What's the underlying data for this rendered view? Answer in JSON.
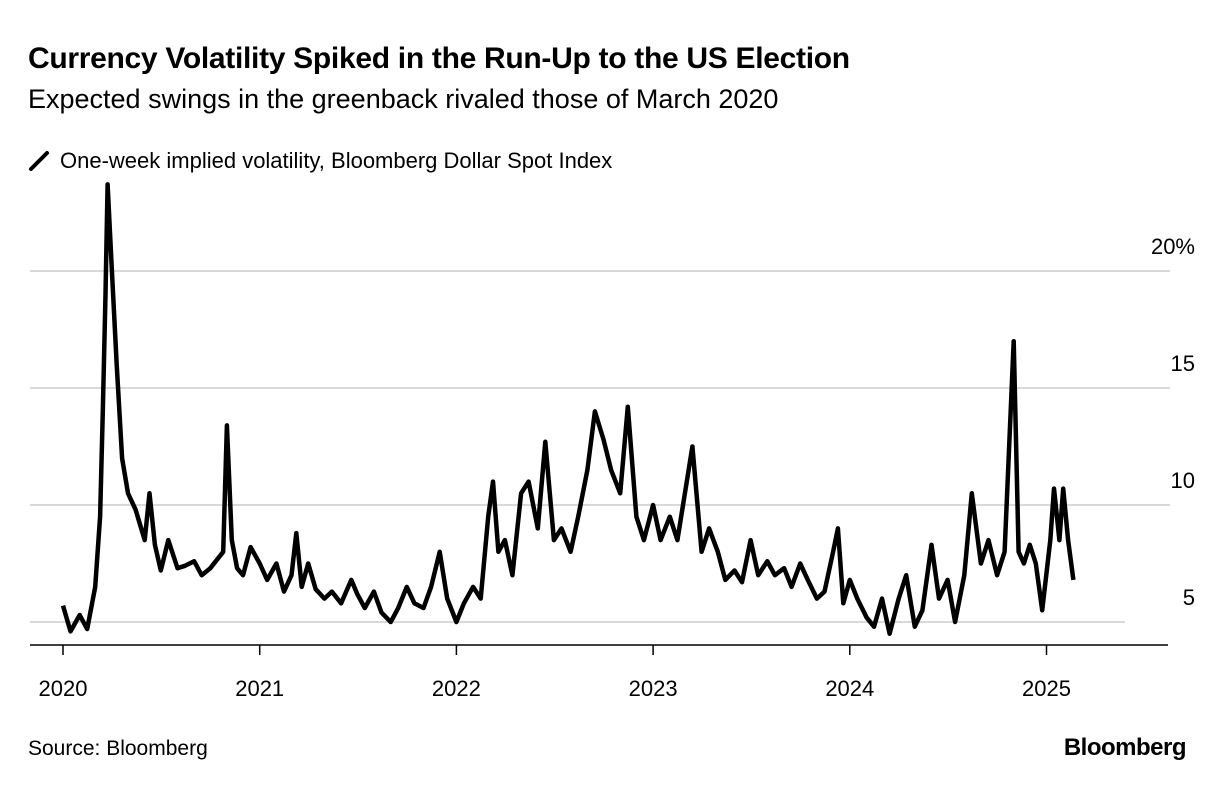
{
  "title": "Currency Volatility Spiked in the Run-Up to the US Election",
  "subtitle": "Expected swings in the greenback rivaled those of March 2020",
  "legend": {
    "label": "One-week implied volatility, Bloomberg Dollar Spot Index",
    "icon": "slash-line-icon",
    "color": "#000000"
  },
  "source": "Source: Bloomberg",
  "logo": "Bloomberg",
  "chart_data": {
    "type": "line",
    "title": "Currency Volatility Spiked in the Run-Up to the US Election",
    "subtitle": "Expected swings in the greenback rivaled those of March 2020",
    "ylim": [
      4.1,
      24
    ],
    "y_ticks": [
      5,
      10,
      15,
      20
    ],
    "y_tick_labels": [
      "5",
      "10",
      "15",
      "20%"
    ],
    "y_axis_position": "right",
    "x_ticks": [
      "2020-01-01",
      "2021-01-01",
      "2022-01-01",
      "2023-01-01",
      "2024-01-01",
      "2025-01-01"
    ],
    "x_tick_labels": [
      "2020",
      "2021",
      "2022",
      "2023",
      "2024",
      "2025"
    ],
    "grid": true,
    "series": [
      {
        "name": "One-week implied volatility, Bloomberg Dollar Spot Index",
        "color": "#000000",
        "x": [
          "2020-01-01",
          "2020-01-15",
          "2020-02-01",
          "2020-02-15",
          "2020-03-01",
          "2020-03-10",
          "2020-03-15",
          "2020-03-20",
          "2020-03-24",
          "2020-04-01",
          "2020-04-10",
          "2020-04-20",
          "2020-05-01",
          "2020-05-15",
          "2020-06-01",
          "2020-06-10",
          "2020-06-20",
          "2020-07-01",
          "2020-07-15",
          "2020-08-01",
          "2020-08-15",
          "2020-09-01",
          "2020-09-15",
          "2020-10-01",
          "2020-10-25",
          "2020-11-01",
          "2020-11-10",
          "2020-11-20",
          "2020-12-01",
          "2020-12-15",
          "2021-01-01",
          "2021-01-15",
          "2021-02-01",
          "2021-02-15",
          "2021-03-01",
          "2021-03-10",
          "2021-03-20",
          "2021-04-01",
          "2021-04-15",
          "2021-05-01",
          "2021-05-15",
          "2021-06-01",
          "2021-06-20",
          "2021-07-01",
          "2021-07-15",
          "2021-08-01",
          "2021-08-15",
          "2021-09-01",
          "2021-09-15",
          "2021-10-01",
          "2021-10-15",
          "2021-11-01",
          "2021-11-15",
          "2021-12-01",
          "2021-12-15",
          "2022-01-01",
          "2022-01-15",
          "2022-02-01",
          "2022-02-15",
          "2022-03-01",
          "2022-03-10",
          "2022-03-20",
          "2022-04-01",
          "2022-04-15",
          "2022-05-01",
          "2022-05-15",
          "2022-06-01",
          "2022-06-15",
          "2022-07-01",
          "2022-07-15",
          "2022-08-01",
          "2022-08-15",
          "2022-09-01",
          "2022-09-15",
          "2022-10-01",
          "2022-10-15",
          "2022-11-01",
          "2022-11-15",
          "2022-12-01",
          "2022-12-15",
          "2023-01-01",
          "2023-01-15",
          "2023-02-01",
          "2023-02-15",
          "2023-03-01",
          "2023-03-15",
          "2023-04-01",
          "2023-04-15",
          "2023-05-01",
          "2023-05-15",
          "2023-06-01",
          "2023-06-15",
          "2023-07-01",
          "2023-07-15",
          "2023-08-01",
          "2023-08-15",
          "2023-09-01",
          "2023-09-15",
          "2023-10-01",
          "2023-10-15",
          "2023-11-01",
          "2023-11-15",
          "2023-12-01",
          "2023-12-10",
          "2023-12-20",
          "2024-01-01",
          "2024-01-15",
          "2024-02-01",
          "2024-02-15",
          "2024-03-01",
          "2024-03-15",
          "2024-04-01",
          "2024-04-15",
          "2024-05-01",
          "2024-05-15",
          "2024-06-01",
          "2024-06-15",
          "2024-07-01",
          "2024-07-15",
          "2024-08-01",
          "2024-08-15",
          "2024-09-01",
          "2024-09-15",
          "2024-10-01",
          "2024-10-15",
          "2024-11-01",
          "2024-11-10",
          "2024-11-20",
          "2024-12-01",
          "2024-12-12",
          "2024-12-24",
          "2025-01-08",
          "2025-01-15",
          "2025-01-25",
          "2025-02-01",
          "2025-02-10",
          "2025-02-20"
        ],
        "y": [
          5.7,
          4.6,
          5.3,
          4.7,
          6.5,
          9.5,
          14,
          19,
          23.7,
          20,
          16,
          12,
          10.5,
          9.8,
          8.5,
          10.5,
          8.3,
          7.2,
          8.5,
          7.3,
          7.4,
          7.6,
          7.0,
          7.3,
          8.0,
          13.4,
          8.5,
          7.3,
          7.0,
          8.2,
          7.5,
          6.8,
          7.5,
          6.3,
          7.0,
          8.8,
          6.5,
          7.5,
          6.4,
          6.0,
          6.3,
          5.8,
          6.8,
          6.2,
          5.6,
          6.3,
          5.4,
          5.0,
          5.6,
          6.5,
          5.8,
          5.6,
          6.5,
          8.0,
          6.0,
          5.0,
          5.8,
          6.5,
          6.0,
          9.5,
          11.0,
          8.0,
          8.5,
          7.0,
          10.5,
          11.0,
          9.0,
          12.7,
          8.5,
          9.0,
          8.0,
          9.5,
          11.5,
          14.0,
          12.8,
          11.5,
          10.5,
          14.2,
          9.5,
          8.5,
          10.0,
          8.5,
          9.5,
          8.5,
          10.5,
          12.5,
          8.0,
          9.0,
          8.0,
          6.8,
          7.2,
          6.7,
          8.5,
          7.0,
          7.6,
          7.0,
          7.3,
          6.5,
          7.5,
          6.8,
          6.0,
          6.3,
          8.0,
          9.0,
          5.8,
          6.8,
          6.0,
          5.2,
          4.8,
          6.0,
          4.5,
          6.0,
          7.0,
          4.8,
          5.5,
          8.3,
          6.0,
          6.8,
          5.0,
          7.0,
          10.5,
          7.5,
          8.5,
          7.0,
          8.0,
          17.0,
          8.0,
          7.5,
          8.3,
          7.5,
          5.5,
          8.5,
          10.7,
          8.5,
          10.7,
          8.5,
          6.8
        ]
      }
    ]
  }
}
